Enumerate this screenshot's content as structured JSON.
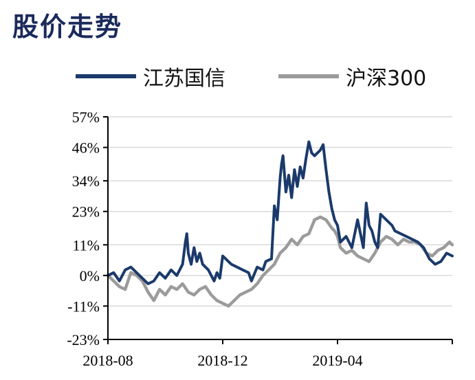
{
  "page_title": "股价走势",
  "chart_data": {
    "type": "line",
    "title": "",
    "xlabel": "",
    "ylabel": "",
    "ylim": [
      -23,
      57
    ],
    "y_ticks": [
      "57%",
      "46%",
      "34%",
      "23%",
      "11%",
      "0%",
      "-11%",
      "-23%"
    ],
    "y_tick_values": [
      57,
      46,
      34,
      23,
      11,
      0,
      -11,
      -23
    ],
    "x_ticks": [
      "2018-08",
      "2018-12",
      "2019-04"
    ],
    "x_tick_positions": [
      0,
      4,
      8
    ],
    "x_range": [
      0,
      12
    ],
    "grid": true,
    "legend_position": "top",
    "series": [
      {
        "name": "江苏国信",
        "color": "#1b3a6b",
        "x": [
          0,
          0.2,
          0.4,
          0.6,
          0.8,
          1.0,
          1.2,
          1.4,
          1.6,
          1.8,
          2.0,
          2.2,
          2.4,
          2.6,
          2.7,
          2.75,
          2.8,
          2.9,
          3.0,
          3.1,
          3.2,
          3.3,
          3.5,
          3.7,
          3.8,
          3.9,
          4.0,
          4.1,
          4.3,
          4.5,
          4.7,
          4.9,
          5.0,
          5.2,
          5.4,
          5.5,
          5.7,
          5.8,
          5.9,
          6.0,
          6.05,
          6.1,
          6.2,
          6.3,
          6.4,
          6.5,
          6.6,
          6.7,
          6.8,
          6.9,
          7.0,
          7.1,
          7.2,
          7.4,
          7.5,
          7.6,
          7.7,
          7.8,
          7.9,
          8.0,
          8.1,
          8.3,
          8.5,
          8.7,
          8.9,
          9.0,
          9.1,
          9.2,
          9.3,
          9.4,
          9.5,
          9.7,
          9.9,
          10.0,
          10.2,
          10.4,
          10.6,
          10.8,
          11.0,
          11.2,
          11.4,
          11.6,
          11.8,
          12.0
        ],
        "values": [
          0,
          1,
          -2,
          2,
          3,
          1,
          -1,
          -3,
          -2,
          1,
          -1,
          2,
          0,
          4,
          12,
          15,
          8,
          4,
          10,
          5,
          8,
          4,
          2,
          -2,
          1,
          -1,
          7,
          6,
          4,
          3,
          2,
          1,
          -2,
          3,
          2,
          5,
          6,
          25,
          20,
          35,
          40,
          43,
          30,
          36,
          28,
          38,
          32,
          39,
          35,
          42,
          48,
          44,
          43,
          45,
          47,
          38,
          30,
          24,
          20,
          18,
          12,
          14,
          10,
          20,
          10,
          26,
          18,
          16,
          12,
          10,
          22,
          20,
          18,
          16,
          15,
          14,
          13,
          12,
          10,
          6,
          4,
          5,
          8,
          7
        ]
      },
      {
        "name": "沪深300",
        "color": "#9b9b9b",
        "x": [
          0,
          0.2,
          0.4,
          0.6,
          0.8,
          1.0,
          1.2,
          1.4,
          1.6,
          1.8,
          2.0,
          2.2,
          2.4,
          2.6,
          2.8,
          3.0,
          3.2,
          3.4,
          3.6,
          3.8,
          4.0,
          4.2,
          4.4,
          4.6,
          4.8,
          5.0,
          5.2,
          5.4,
          5.6,
          5.8,
          6.0,
          6.2,
          6.4,
          6.6,
          6.8,
          7.0,
          7.2,
          7.4,
          7.6,
          7.8,
          7.9,
          8.0,
          8.1,
          8.3,
          8.5,
          8.7,
          8.9,
          9.1,
          9.3,
          9.5,
          9.7,
          9.9,
          10.1,
          10.3,
          10.5,
          10.7,
          10.9,
          11.1,
          11.3,
          11.5,
          11.7,
          11.9,
          12.0
        ],
        "values": [
          0,
          -2,
          -4,
          -5,
          1,
          0,
          -2,
          -6,
          -9,
          -5,
          -7,
          -4,
          -5,
          -3,
          -6,
          -7,
          -5,
          -4,
          -7,
          -9,
          -10,
          -11,
          -9,
          -7,
          -6,
          -5,
          -3,
          0,
          2,
          4,
          8,
          10,
          13,
          11,
          14,
          15,
          20,
          21,
          20,
          17,
          16,
          14,
          10,
          8,
          9,
          7,
          6,
          5,
          8,
          12,
          14,
          13,
          11,
          13,
          12,
          12,
          11,
          8,
          7,
          9,
          10,
          12,
          11
        ]
      }
    ]
  }
}
